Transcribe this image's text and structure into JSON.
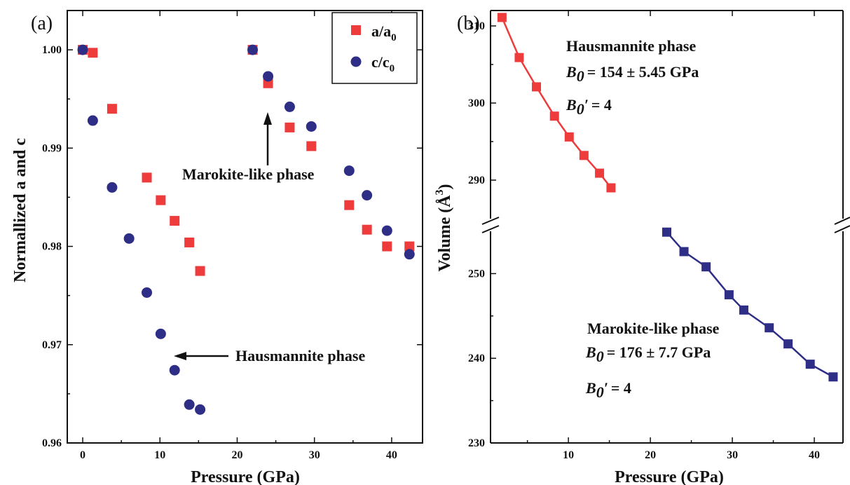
{
  "colors": {
    "red": "#ee3b3b",
    "blue": "#2e2e86",
    "axis": "#111111"
  },
  "chart_data": [
    {
      "panel": "(a)",
      "type": "scatter",
      "xlabel": "Pressure (GPa)",
      "ylabel": "Normallized a and c",
      "xlim": [
        -2,
        44
      ],
      "ylim": [
        0.96,
        1.004
      ],
      "xticks": [
        "0",
        "10",
        "20",
        "30",
        "40"
      ],
      "yticks": [
        "0.96",
        "0.97",
        "0.98",
        "0.99",
        "1.00"
      ],
      "legend": {
        "placement": "top-right",
        "entries": [
          {
            "main": "a/a",
            "sub": "0"
          },
          {
            "main": "c/c",
            "sub": "0"
          }
        ]
      },
      "series": [
        {
          "name": "a/a0",
          "marker": "square",
          "points": [
            [
              0.0,
              1.0
            ],
            [
              1.3,
              0.9997
            ],
            [
              3.8,
              0.994
            ],
            [
              8.3,
              0.987
            ],
            [
              10.1,
              0.9847
            ],
            [
              11.9,
              0.9826
            ],
            [
              13.8,
              0.9804
            ],
            [
              15.2,
              0.9775
            ],
            [
              22.0,
              1.0
            ],
            [
              24.0,
              0.9966
            ],
            [
              26.8,
              0.9921
            ],
            [
              29.6,
              0.9902
            ],
            [
              34.5,
              0.9842
            ],
            [
              36.8,
              0.9817
            ],
            [
              39.4,
              0.98
            ],
            [
              42.3,
              0.98
            ]
          ]
        },
        {
          "name": "c/c0",
          "marker": "circle",
          "points": [
            [
              0.0,
              1.0
            ],
            [
              1.3,
              0.9928
            ],
            [
              3.8,
              0.986
            ],
            [
              6.0,
              0.9808
            ],
            [
              8.3,
              0.9753
            ],
            [
              10.1,
              0.9711
            ],
            [
              11.9,
              0.9674
            ],
            [
              13.8,
              0.9639
            ],
            [
              15.2,
              0.9634
            ],
            [
              22.0,
              1.0
            ],
            [
              24.0,
              0.9973
            ],
            [
              26.8,
              0.9942
            ],
            [
              29.6,
              0.9922
            ],
            [
              34.5,
              0.9877
            ],
            [
              36.8,
              0.9852
            ],
            [
              39.4,
              0.9816
            ],
            [
              42.3,
              0.9792
            ]
          ]
        }
      ],
      "annotations": [
        {
          "text": "Marokite-like phase"
        },
        {
          "text": "Hausmannite phase"
        }
      ]
    },
    {
      "panel": "(b)",
      "type": "line",
      "xlabel": "Pressure (GPa)",
      "ylabel": "Volume (Å",
      "ylabel_sup": "3",
      "ylabel_end": ")",
      "xlim": [
        0.5,
        43.5
      ],
      "axis_break": true,
      "upper_ylim": [
        285,
        312
      ],
      "lower_ylim": [
        230,
        255
      ],
      "xticks": [
        "10",
        "20",
        "30",
        "40"
      ],
      "upper_yticks": [
        "290",
        "300",
        "310"
      ],
      "lower_yticks": [
        "230",
        "240",
        "250"
      ],
      "series": [
        {
          "name": "Hausmannite phase",
          "marker": "square",
          "points": [
            [
              1.9,
              311.1
            ],
            [
              4.0,
              305.9
            ],
            [
              6.1,
              302.1
            ],
            [
              8.3,
              298.3
            ],
            [
              10.1,
              295.6
            ],
            [
              11.9,
              293.2
            ],
            [
              13.8,
              290.9
            ],
            [
              15.2,
              289.0
            ]
          ]
        },
        {
          "name": "Marokite-like phase",
          "marker": "square",
          "points": [
            [
              22.0,
              254.9
            ],
            [
              24.1,
              252.6
            ],
            [
              26.8,
              250.8
            ],
            [
              29.6,
              247.5
            ],
            [
              31.4,
              245.7
            ],
            [
              34.5,
              243.6
            ],
            [
              36.8,
              241.7
            ],
            [
              39.5,
              239.3
            ],
            [
              42.3,
              237.8
            ]
          ]
        }
      ],
      "annotations": {
        "haus_title": "Hausmannite phase",
        "haus_b0": "= 154 ± 5.45 GPa",
        "haus_b0p": "= 4",
        "maro_title": "Marokite-like phase",
        "maro_b0": "= 176 ± 7.7 GPa",
        "maro_b0p": "= 4",
        "b_symbol": "B",
        "sub0": "0",
        "prime": "′"
      }
    }
  ]
}
